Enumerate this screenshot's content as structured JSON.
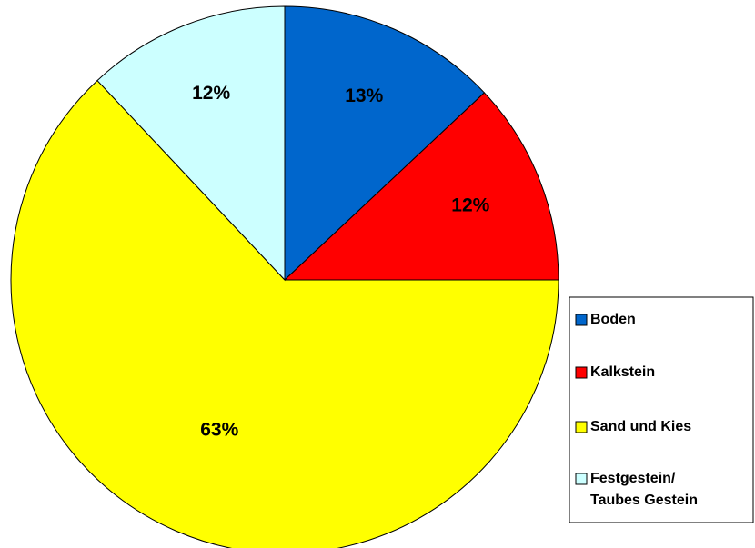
{
  "chart_data": {
    "type": "pie",
    "categories": [
      "Boden",
      "Kalkstein",
      "Sand und Kies",
      "Festgestein/\nTaubes Gestein"
    ],
    "values": [
      13,
      12,
      63,
      12
    ],
    "value_labels": [
      "13%",
      "12%",
      "63%",
      "12%"
    ],
    "colors": [
      "#0066cc",
      "#ff0000",
      "#ffff00",
      "#ccffff"
    ],
    "legend": "right"
  }
}
